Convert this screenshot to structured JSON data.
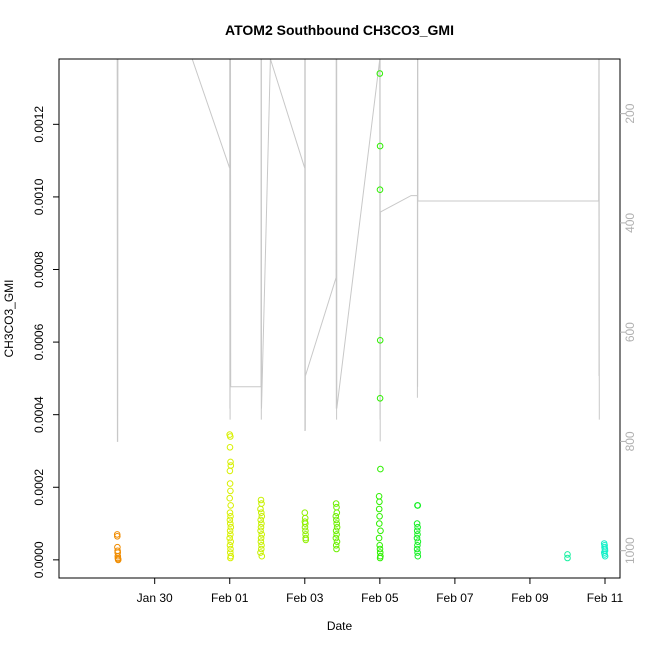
{
  "chart_data": {
    "type": "scatter",
    "title": "ATOM2 Southbound CH3CO3_GMI",
    "xlabel": "Date",
    "ylabel": "CH3CO3_GMI",
    "x_unit": "day",
    "xlim": [
      "2017-01-28",
      "2017-02-11"
    ],
    "ylim": [
      -5e-05,
      0.00138
    ],
    "x_ticks": [
      {
        "value": "2017-01-30",
        "label": "Jan 30"
      },
      {
        "value": "2017-02-01",
        "label": "Feb 01"
      },
      {
        "value": "2017-02-03",
        "label": "Feb 03"
      },
      {
        "value": "2017-02-05",
        "label": "Feb 05"
      },
      {
        "value": "2017-02-07",
        "label": "Feb 07"
      },
      {
        "value": "2017-02-09",
        "label": "Feb 09"
      },
      {
        "value": "2017-02-11",
        "label": "Feb 11"
      }
    ],
    "y_ticks": [
      {
        "value": 0.0,
        "label": "0.0000"
      },
      {
        "value": 0.0002,
        "label": "0.0002"
      },
      {
        "value": 0.0004,
        "label": "0.0004"
      },
      {
        "value": 0.0006,
        "label": "0.0006"
      },
      {
        "value": 0.0008,
        "label": "0.0008"
      },
      {
        "value": 0.001,
        "label": "0.0010"
      },
      {
        "value": 0.0012,
        "label": "0.0012"
      }
    ],
    "y2_reversed": true,
    "y2lim": [
      100,
      1050
    ],
    "y2_ticks": [
      {
        "value": 200,
        "label": "200"
      },
      {
        "value": 400,
        "label": "400"
      },
      {
        "value": 600,
        "label": "600"
      },
      {
        "value": 800,
        "label": "800"
      },
      {
        "value": 1000,
        "label": "1000"
      }
    ],
    "grid": false,
    "marker": "open-circle",
    "point_groups": [
      {
        "color": "#f08c00",
        "points": [
          [
            "2017-01-29T00:00",
            7e-05
          ],
          [
            "2017-01-29T00:05",
            6.5e-05
          ],
          [
            "2017-01-29T00:10",
            3.5e-05
          ],
          [
            "2017-01-29T00:15",
            2.5e-05
          ],
          [
            "2017-01-29T00:20",
            2e-05
          ],
          [
            "2017-01-29T00:25",
            1e-05
          ],
          [
            "2017-01-29T00:30",
            5e-06
          ],
          [
            "2017-01-29T00:35",
            2e-06
          ],
          [
            "2017-01-29T00:40",
            0.0
          ]
        ]
      },
      {
        "color": "#d8f000",
        "points": [
          [
            "2017-02-01T00:00",
            0.000345
          ],
          [
            "2017-02-01T00:20",
            0.00034
          ],
          [
            "2017-02-01T00:10",
            0.00031
          ],
          [
            "2017-02-01T00:30",
            0.00027
          ],
          [
            "2017-02-01T00:40",
            0.00026
          ],
          [
            "2017-02-01T00:05",
            0.000245
          ],
          [
            "2017-02-01T00:15",
            0.00021
          ],
          [
            "2017-02-01T00:25",
            0.00019
          ],
          [
            "2017-02-01T00:00",
            0.00017
          ],
          [
            "2017-02-01T00:35",
            0.00015
          ],
          [
            "2017-02-01T00:10",
            0.00013
          ],
          [
            "2017-02-01T00:30",
            0.00012
          ],
          [
            "2017-02-01T00:05",
            0.00011
          ],
          [
            "2017-02-01T00:20",
            0.0001
          ],
          [
            "2017-02-01T00:40",
            9e-05
          ],
          [
            "2017-02-01T00:15",
            8e-05
          ],
          [
            "2017-02-01T00:25",
            7e-05
          ],
          [
            "2017-02-01T00:00",
            6e-05
          ],
          [
            "2017-02-01T00:35",
            5e-05
          ],
          [
            "2017-02-01T00:10",
            4e-05
          ],
          [
            "2017-02-01T00:30",
            3e-05
          ],
          [
            "2017-02-01T00:20",
            2e-05
          ],
          [
            "2017-02-01T00:40",
            1e-05
          ],
          [
            "2017-02-01T00:25",
            5e-06
          ]
        ]
      },
      {
        "color": "#c8f000",
        "points": [
          [
            "2017-02-01T20:00",
            0.000165
          ],
          [
            "2017-02-01T20:20",
            0.000155
          ],
          [
            "2017-02-01T19:40",
            0.00014
          ],
          [
            "2017-02-01T20:10",
            0.00013
          ],
          [
            "2017-02-01T20:30",
            0.00012
          ],
          [
            "2017-02-01T19:50",
            0.00011
          ],
          [
            "2017-02-01T20:15",
            0.0001
          ],
          [
            "2017-02-01T20:00",
            9e-05
          ],
          [
            "2017-02-01T19:45",
            8e-05
          ],
          [
            "2017-02-01T20:25",
            7e-05
          ],
          [
            "2017-02-01T20:05",
            6e-05
          ],
          [
            "2017-02-01T19:55",
            5e-05
          ],
          [
            "2017-02-01T20:20",
            4e-05
          ],
          [
            "2017-02-01T20:10",
            3e-05
          ],
          [
            "2017-02-01T19:40",
            2e-05
          ],
          [
            "2017-02-01T20:30",
            1e-05
          ]
        ]
      },
      {
        "color": "#90f000",
        "points": [
          [
            "2017-02-03T00:00",
            0.00013
          ],
          [
            "2017-02-03T00:15",
            0.000115
          ],
          [
            "2017-02-03T00:05",
            0.000105
          ],
          [
            "2017-02-03T00:20",
            0.0001
          ],
          [
            "2017-02-03T00:10",
            9e-05
          ],
          [
            "2017-02-03T00:25",
            8e-05
          ],
          [
            "2017-02-03T00:30",
            7e-05
          ],
          [
            "2017-02-03T00:35",
            6e-05
          ],
          [
            "2017-02-03T00:40",
            5.5e-05
          ]
        ]
      },
      {
        "color": "#6cf000",
        "points": [
          [
            "2017-02-03T20:00",
            0.000155
          ],
          [
            "2017-02-03T20:15",
            0.000145
          ],
          [
            "2017-02-03T20:30",
            0.00013
          ],
          [
            "2017-02-03T19:50",
            0.00012
          ],
          [
            "2017-02-03T20:10",
            0.00011
          ],
          [
            "2017-02-03T20:25",
            0.0001
          ],
          [
            "2017-02-03T20:40",
            9e-05
          ],
          [
            "2017-02-03T20:00",
            8e-05
          ],
          [
            "2017-02-03T20:20",
            7e-05
          ],
          [
            "2017-02-03T19:55",
            6e-05
          ],
          [
            "2017-02-03T20:35",
            5e-05
          ],
          [
            "2017-02-03T20:05",
            4e-05
          ],
          [
            "2017-02-03T20:15",
            3e-05
          ]
        ]
      },
      {
        "color": "#2ef000",
        "points": [
          [
            "2017-02-05T00:00",
            0.00134
          ],
          [
            "2017-02-05T00:10",
            0.00114
          ],
          [
            "2017-02-05T00:05",
            0.00102
          ],
          [
            "2017-02-05T00:15",
            0.000605
          ],
          [
            "2017-02-05T00:10",
            0.000445
          ],
          [
            "2017-02-05T00:20",
            0.00025
          ],
          [
            "2017-02-04T23:30",
            0.000175
          ],
          [
            "2017-02-04T23:45",
            0.00016
          ],
          [
            "2017-02-04T23:35",
            0.00014
          ],
          [
            "2017-02-04T23:50",
            0.00012
          ],
          [
            "2017-02-04T23:40",
            0.0001
          ],
          [
            "2017-02-05T00:25",
            8e-05
          ],
          [
            "2017-02-04T23:30",
            6e-05
          ],
          [
            "2017-02-04T23:55",
            4e-05
          ],
          [
            "2017-02-05T00:05",
            3e-05
          ],
          [
            "2017-02-05T00:15",
            2e-05
          ],
          [
            "2017-02-05T00:20",
            1e-05
          ],
          [
            "2017-02-05T00:10",
            5e-06
          ]
        ]
      },
      {
        "color": "#14f024",
        "points": [
          [
            "2017-02-06T00:00",
            0.00015
          ],
          [
            "2017-02-06T00:15",
            0.00015
          ],
          [
            "2017-02-05T23:50",
            0.0001
          ],
          [
            "2017-02-06T00:10",
            9e-05
          ],
          [
            "2017-02-05T23:55",
            8e-05
          ],
          [
            "2017-02-06T00:05",
            7e-05
          ],
          [
            "2017-02-05T23:45",
            6e-05
          ],
          [
            "2017-02-06T00:20",
            5e-05
          ],
          [
            "2017-02-06T00:00",
            4e-05
          ],
          [
            "2017-02-05T23:50",
            3e-05
          ],
          [
            "2017-02-06T00:10",
            2e-05
          ],
          [
            "2017-02-06T00:15",
            1e-05
          ]
        ]
      },
      {
        "color": "#14f0a0",
        "points": [
          [
            "2017-02-10T00:00",
            1.5e-05
          ],
          [
            "2017-02-10T00:00",
            5e-06
          ]
        ]
      },
      {
        "color": "#14f0c8",
        "points": [
          [
            "2017-02-10T23:30",
            4.5e-05
          ],
          [
            "2017-02-10T23:45",
            4e-05
          ],
          [
            "2017-02-10T23:40",
            3.5e-05
          ],
          [
            "2017-02-10T23:55",
            3e-05
          ],
          [
            "2017-02-11T00:00",
            2.5e-05
          ],
          [
            "2017-02-10T23:35",
            2e-05
          ],
          [
            "2017-02-10T23:50",
            1.5e-05
          ],
          [
            "2017-02-11T00:05",
            1e-05
          ]
        ]
      }
    ],
    "altitude_trace": {
      "color": "#c8c8c8",
      "points": [
        [
          "2017-01-29T00:00",
          100
        ],
        [
          "2017-01-29T00:10",
          800
        ],
        [
          "2017-01-29T00:20",
          800
        ],
        [
          "2017-01-29T00:30",
          100
        ],
        [
          "2017-01-31T00:00",
          100
        ],
        [
          "2017-02-01T00:00",
          300
        ],
        [
          "2017-02-01T00:00",
          100
        ],
        [
          "2017-02-01T00:05",
          740
        ],
        [
          "2017-02-01T00:10",
          100
        ],
        [
          "2017-02-01T00:15",
          760
        ],
        [
          "2017-02-01T00:20",
          100
        ],
        [
          "2017-02-01T00:25",
          700
        ],
        [
          "2017-02-01T00:30",
          100
        ],
        [
          "2017-02-01T00:35",
          700
        ],
        [
          "2017-02-01T20:00",
          700
        ],
        [
          "2017-02-01T20:05",
          100
        ],
        [
          "2017-02-01T20:10",
          760
        ],
        [
          "2017-02-01T20:15",
          100
        ],
        [
          "2017-02-01T20:20",
          740
        ],
        [
          "2017-02-02T02:00",
          100
        ],
        [
          "2017-02-03T00:00",
          300
        ],
        [
          "2017-02-03T00:00",
          100
        ],
        [
          "2017-02-03T00:05",
          780
        ],
        [
          "2017-02-03T00:10",
          780
        ],
        [
          "2017-02-03T00:15",
          100
        ],
        [
          "2017-02-03T00:20",
          780
        ],
        [
          "2017-02-03T00:25",
          680
        ],
        [
          "2017-02-03T20:00",
          500
        ],
        [
          "2017-02-03T20:05",
          100
        ],
        [
          "2017-02-03T20:10",
          740
        ],
        [
          "2017-02-03T20:15",
          100
        ],
        [
          "2017-02-03T20:20",
          760
        ],
        [
          "2017-02-03T20:25",
          100
        ],
        [
          "2017-02-03T20:30",
          740
        ],
        [
          "2017-02-05T00:00",
          100
        ],
        [
          "2017-02-05T00:05",
          760
        ],
        [
          "2017-02-05T00:10",
          100
        ],
        [
          "2017-02-05T00:15",
          800
        ],
        [
          "2017-02-05T00:20",
          380
        ],
        [
          "2017-02-05T00:25",
          380
        ],
        [
          "2017-02-05T20:00",
          350
        ],
        [
          "2017-02-06T00:00",
          350
        ],
        [
          "2017-02-06T00:00",
          720
        ],
        [
          "2017-02-06T00:05",
          100
        ],
        [
          "2017-02-06T00:10",
          700
        ],
        [
          "2017-02-06T00:15",
          100
        ],
        [
          "2017-02-06T00:20",
          360
        ],
        [
          "2017-02-10T00:00",
          360
        ],
        [
          "2017-02-10T20:00",
          360
        ],
        [
          "2017-02-10T20:05",
          100
        ],
        [
          "2017-02-10T20:10",
          680
        ],
        [
          "2017-02-10T20:15",
          100
        ],
        [
          "2017-02-10T20:20",
          760
        ]
      ]
    }
  }
}
